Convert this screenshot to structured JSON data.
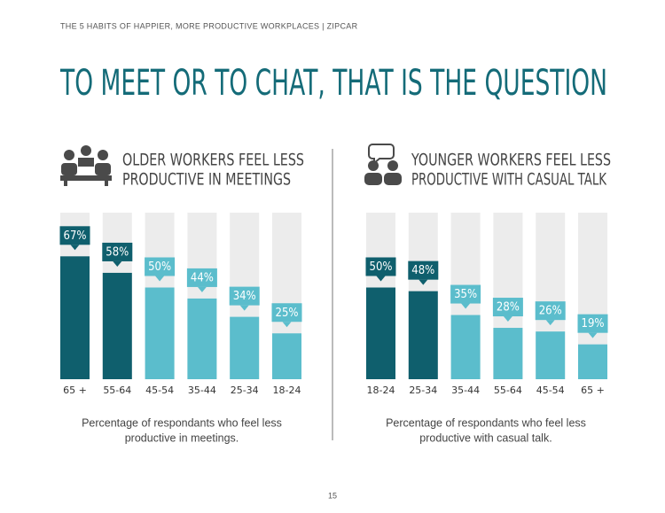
{
  "header": "THE 5 HABITS OF HAPPIER, MORE PRODUCTIVE WORKPLACES  |  ZIPCAR",
  "title": "TO MEET OR TO CHAT, THAT IS THE QUESTION",
  "page_number": "15",
  "chart_data": [
    {
      "type": "bar",
      "title": [
        "OLDER WORKERS FEEL LESS",
        "PRODUCTIVE IN MEETINGS"
      ],
      "caption": [
        "Percentage of respondants who feel less",
        "productive in meetings."
      ],
      "categories": [
        "65 +",
        "55-64",
        "45-54",
        "35-44",
        "25-34",
        "18-24"
      ],
      "values": [
        67,
        58,
        50,
        44,
        34,
        25
      ],
      "value_labels": [
        "67%",
        "58%",
        "50%",
        "44%",
        "34%",
        "25%"
      ],
      "colors": [
        "#0f5f6d",
        "#0f5f6d",
        "#5bbdcc",
        "#5bbdcc",
        "#5bbdcc",
        "#5bbdcc"
      ],
      "ylim": [
        0,
        100
      ]
    },
    {
      "type": "bar",
      "title": [
        "YOUNGER WORKERS FEEL LESS",
        "PRODUCTIVE WITH CASUAL TALK"
      ],
      "caption": [
        "Percentage of respondants who feel less",
        "productive with casual talk."
      ],
      "categories": [
        "18-24",
        "25-34",
        "35-44",
        "55-64",
        "45-54",
        "65 +"
      ],
      "values": [
        50,
        48,
        35,
        28,
        26,
        19
      ],
      "value_labels": [
        "50%",
        "48%",
        "35%",
        "28%",
        "26%",
        "19%"
      ],
      "colors": [
        "#0f5f6d",
        "#0f5f6d",
        "#5bbdcc",
        "#5bbdcc",
        "#5bbdcc",
        "#5bbdcc"
      ],
      "ylim": [
        0,
        100
      ]
    }
  ]
}
